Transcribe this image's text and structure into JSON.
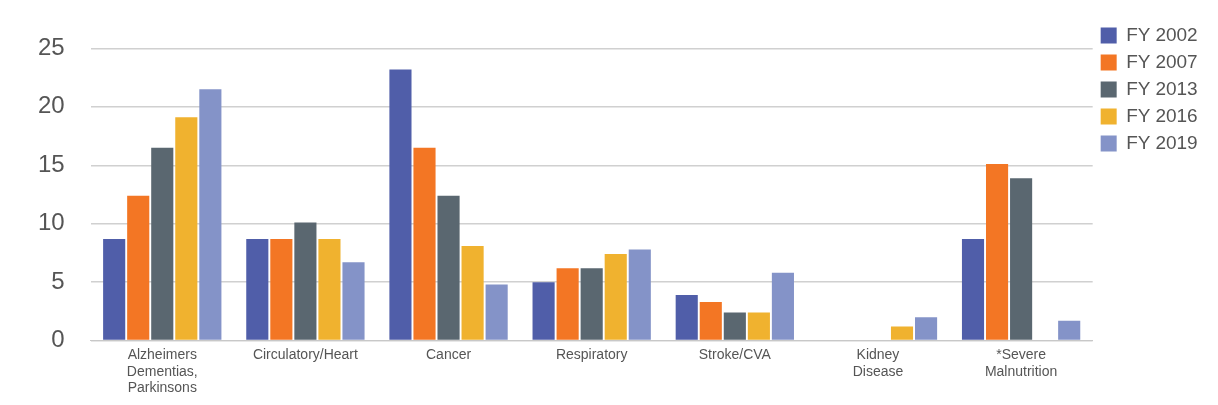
{
  "chart_data": {
    "type": "bar",
    "categories": [
      [
        "Alzheimers",
        "Dementias,",
        "Parkinsons"
      ],
      "Circulatory/Heart",
      "Cancer",
      "Respiratory",
      "Stroke/CVA",
      [
        "Kidney",
        "Disease"
      ],
      [
        "*Severe",
        "Malnutrition"
      ]
    ],
    "series": [
      {
        "name": "FY 2002",
        "color": "#505ea9",
        "values": [
          8.7,
          8.7,
          23.2,
          5.0,
          3.9,
          null,
          8.7
        ]
      },
      {
        "name": "FY 2007",
        "color": "#f37624",
        "values": [
          12.4,
          8.7,
          16.5,
          6.2,
          3.3,
          null,
          15.1
        ]
      },
      {
        "name": "FY 2013",
        "color": "#5a6770",
        "values": [
          16.5,
          10.1,
          12.4,
          6.2,
          2.4,
          null,
          13.9
        ]
      },
      {
        "name": "FY 2016",
        "color": "#f0b22f",
        "values": [
          19.1,
          8.7,
          8.1,
          7.4,
          2.4,
          1.2,
          null
        ]
      },
      {
        "name": "FY 2019",
        "color": "#8493c8",
        "values": [
          21.5,
          6.7,
          4.8,
          7.8,
          5.8,
          2.0,
          1.7
        ]
      }
    ],
    "ylim": [
      0,
      25
    ],
    "yticks": [
      0,
      5,
      10,
      15,
      20,
      25
    ],
    "grid": "y",
    "legend": "top right"
  }
}
